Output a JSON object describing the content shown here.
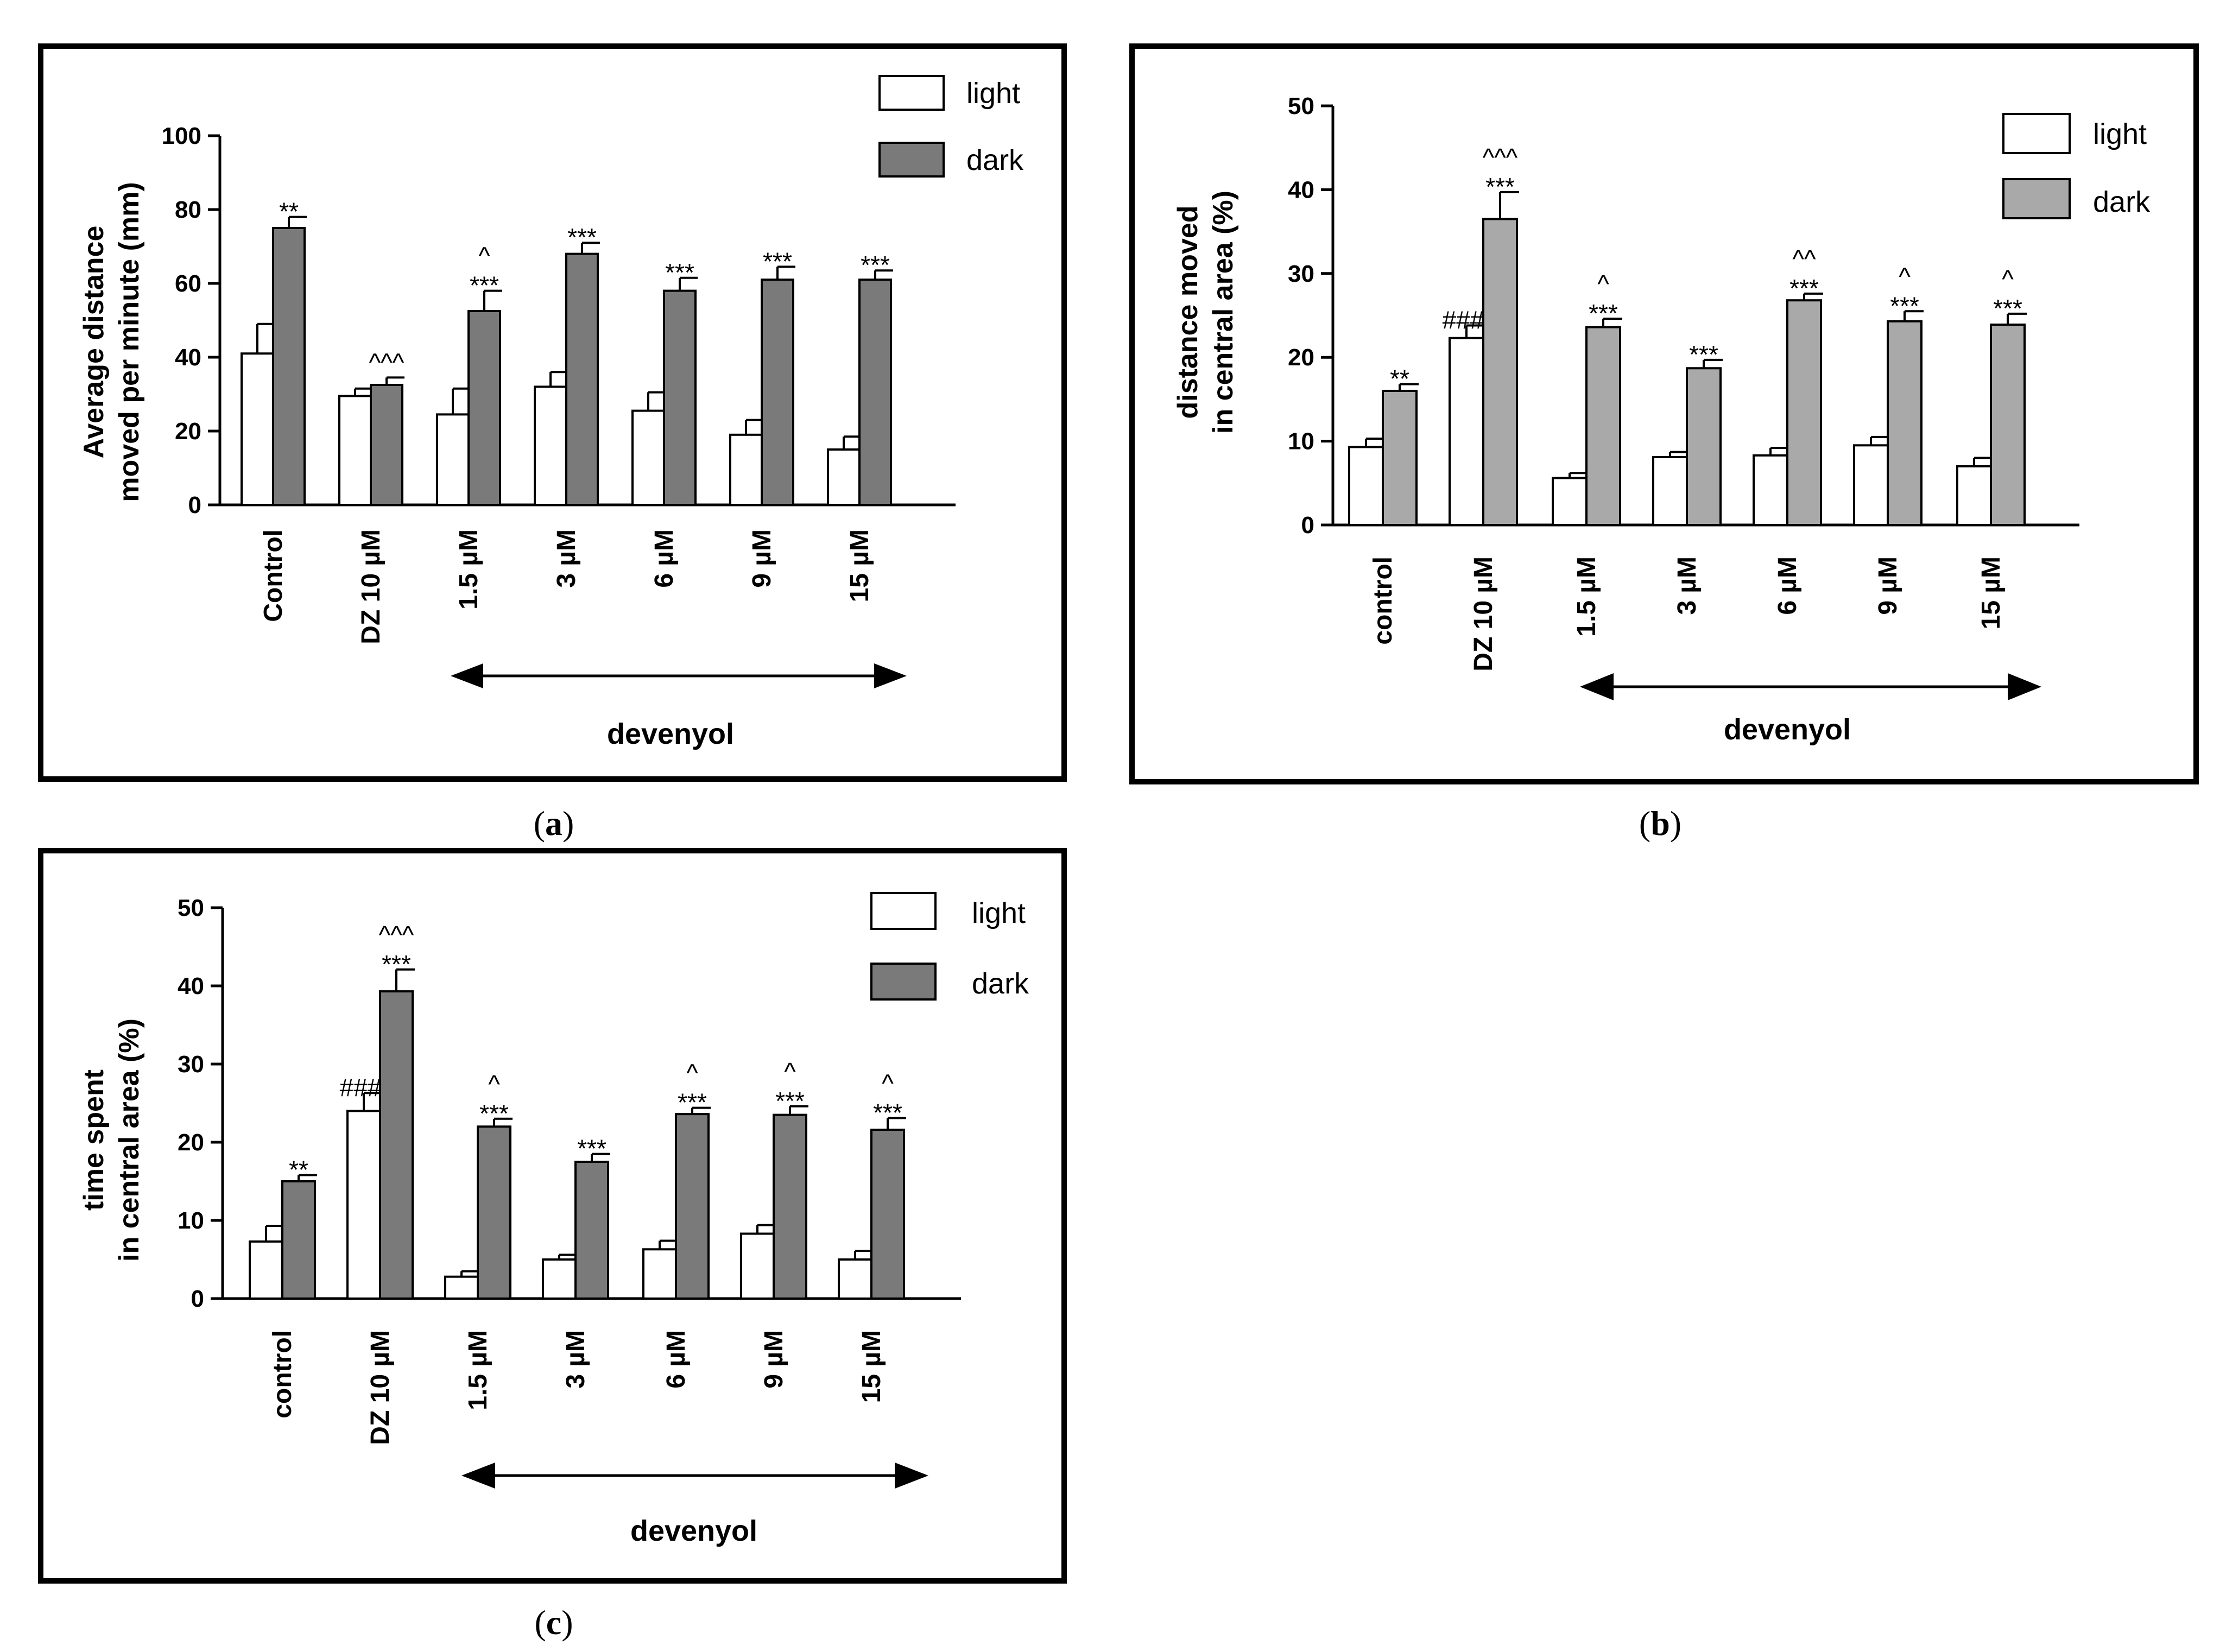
{
  "colors": {
    "light": "#ffffff",
    "dark_a": "#7a7a7a",
    "dark_b": "#a9a9a9",
    "dark_c": "#7a7a7a"
  },
  "chart_data": [
    {
      "id": "a",
      "type": "bar",
      "caption_letter": "a",
      "ylabel_lines": [
        "Average distance",
        "moved per minute (mm)"
      ],
      "ylim": [
        0,
        100
      ],
      "yticks": [
        0,
        20,
        40,
        60,
        80,
        100
      ],
      "categories": [
        "Control",
        "DZ 10 µM",
        "1.5 µM",
        "3 µM",
        "6 µM",
        "9 µM",
        "15 µM"
      ],
      "group_label": "devenyol",
      "legend": [
        "light",
        "dark"
      ],
      "series": [
        {
          "name": "light",
          "values": [
            41,
            29.5,
            24.5,
            32,
            25.5,
            19,
            15
          ],
          "errors": [
            8,
            2,
            7,
            4,
            5,
            4,
            3.5
          ]
        },
        {
          "name": "dark",
          "values": [
            75,
            32.5,
            52.5,
            68,
            58,
            61,
            61
          ],
          "errors": [
            3,
            2,
            5.5,
            3,
            3.5,
            3.5,
            2.5
          ]
        }
      ],
      "annotations": [
        {
          "text": "**",
          "category": 0,
          "series": 1
        },
        {
          "text": "^^^",
          "category": 1,
          "series": 1
        },
        {
          "text": "***",
          "category": 2,
          "series": 1,
          "line2": "^"
        },
        {
          "text": "***",
          "category": 3,
          "series": 1
        },
        {
          "text": "***",
          "category": 4,
          "series": 1
        },
        {
          "text": "***",
          "category": 5,
          "series": 1
        },
        {
          "text": "***",
          "category": 6,
          "series": 1
        }
      ]
    },
    {
      "id": "b",
      "type": "bar",
      "caption_letter": "b",
      "ylabel_lines": [
        "distance moved",
        "in central area (%)"
      ],
      "ylim": [
        0,
        50
      ],
      "yticks": [
        0,
        10,
        20,
        30,
        40,
        50
      ],
      "categories": [
        "control",
        "DZ 10 µM",
        "1.5 µM",
        "3 µM",
        "6 µM",
        "9 µM",
        "15 µM"
      ],
      "group_label": "devenyol",
      "legend": [
        "light",
        "dark"
      ],
      "series": [
        {
          "name": "light",
          "values": [
            9.3,
            22.3,
            5.6,
            8.1,
            8.3,
            9.5,
            7
          ],
          "errors": [
            1,
            1.5,
            0.6,
            0.6,
            0.9,
            1,
            1
          ]
        },
        {
          "name": "dark",
          "values": [
            16,
            36.5,
            23.6,
            18.7,
            26.8,
            24.3,
            23.9
          ],
          "errors": [
            0.8,
            3.2,
            1,
            1,
            0.8,
            1.2,
            1.3
          ]
        }
      ],
      "annotations": [
        {
          "text": "**",
          "category": 0,
          "series": 1
        },
        {
          "text": "###",
          "category": 1,
          "series": 0
        },
        {
          "text": "***",
          "category": 1,
          "series": 1,
          "line2": "^^^"
        },
        {
          "text": "***",
          "category": 2,
          "series": 1,
          "line2": "^"
        },
        {
          "text": "***",
          "category": 3,
          "series": 1
        },
        {
          "text": "***",
          "category": 4,
          "series": 1,
          "line2": "^^"
        },
        {
          "text": "***",
          "category": 5,
          "series": 1,
          "line2": "^"
        },
        {
          "text": "***",
          "category": 6,
          "series": 1,
          "line2": "^"
        }
      ]
    },
    {
      "id": "c",
      "type": "bar",
      "caption_letter": "c",
      "ylabel_lines": [
        "time spent",
        "in central area (%)"
      ],
      "ylim": [
        0,
        50
      ],
      "yticks": [
        0,
        10,
        20,
        30,
        40,
        50
      ],
      "categories": [
        "control",
        "DZ 10 µM",
        "1.5 µM",
        "3 µM",
        "6 µM",
        "9 µM",
        "15 µM"
      ],
      "group_label": "devenyol",
      "legend": [
        "light",
        "dark"
      ],
      "series": [
        {
          "name": "light",
          "values": [
            7.3,
            24,
            2.8,
            5,
            6.3,
            8.3,
            5
          ],
          "errors": [
            2,
            2.3,
            0.7,
            0.6,
            1.1,
            1.1,
            1.1
          ]
        },
        {
          "name": "dark",
          "values": [
            15,
            39.3,
            22,
            17.5,
            23.6,
            23.5,
            21.6
          ],
          "errors": [
            0.8,
            2.8,
            1,
            1,
            0.8,
            1.1,
            1.5
          ]
        }
      ],
      "annotations": [
        {
          "text": "**",
          "category": 0,
          "series": 1
        },
        {
          "text": "###",
          "category": 1,
          "series": 0
        },
        {
          "text": "***",
          "category": 1,
          "series": 1,
          "line2": "^^^"
        },
        {
          "text": "***",
          "category": 2,
          "series": 1,
          "line2": "^"
        },
        {
          "text": "***",
          "category": 3,
          "series": 1
        },
        {
          "text": "***",
          "category": 4,
          "series": 1,
          "line2": "^"
        },
        {
          "text": "***",
          "category": 5,
          "series": 1,
          "line2": "^"
        },
        {
          "text": "***",
          "category": 6,
          "series": 1,
          "line2": "^"
        }
      ]
    }
  ]
}
